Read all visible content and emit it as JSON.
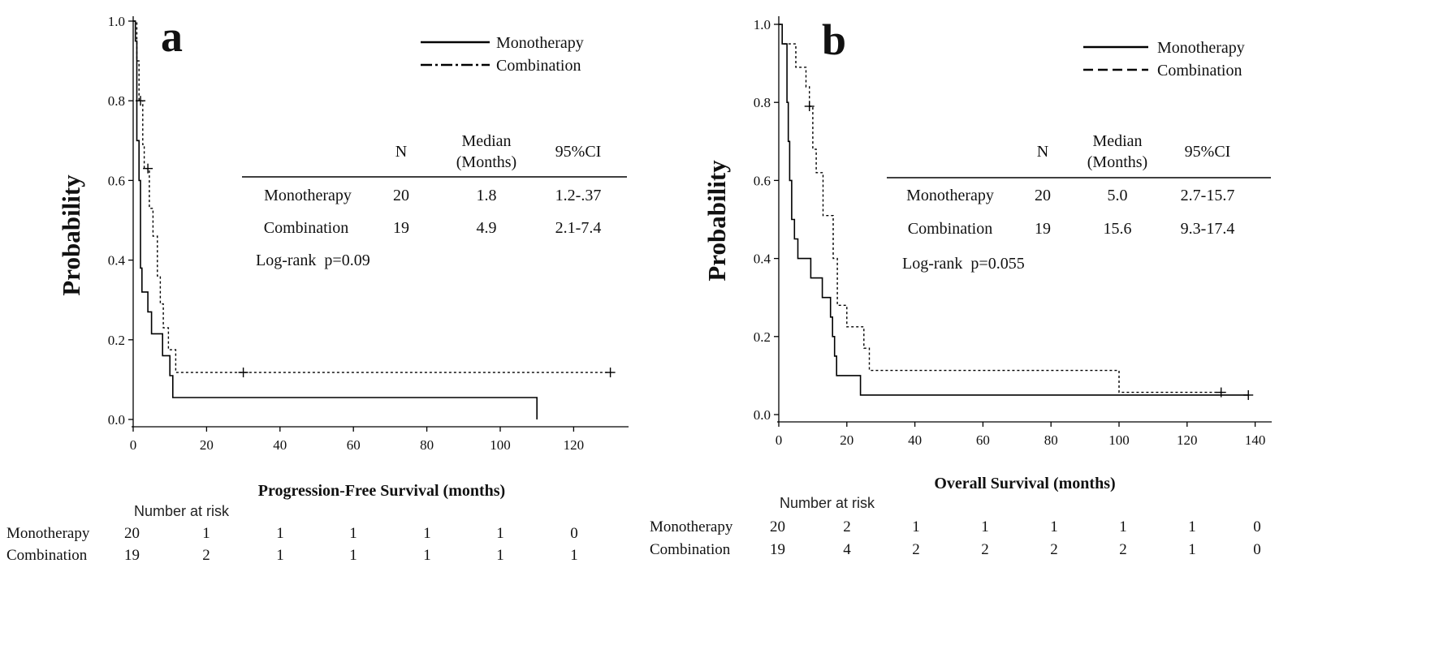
{
  "chart_data": [
    {
      "type": "line",
      "panel_letter": "a",
      "xlabel": "Progression-Free Survival (months)",
      "ylabel": "Probability",
      "xlim": [
        0,
        135
      ],
      "ylim": [
        0,
        1.0
      ],
      "x_ticks": [
        0,
        20,
        40,
        60,
        80,
        100,
        120
      ],
      "y_ticks": [
        "0.0",
        "0.2",
        "0.4",
        "0.6",
        "0.8",
        "1.0"
      ],
      "x_tick_labels": [
        "0",
        "20",
        "40",
        "60",
        "80",
        "100",
        "120"
      ],
      "legend": [
        {
          "name": "Monotherapy",
          "style": "solid"
        },
        {
          "name": "Combination",
          "style": "dashdot"
        }
      ],
      "series": [
        {
          "name": "Monotherapy",
          "style": "solid",
          "points": [
            [
              0,
              1.0
            ],
            [
              0.6,
              1.0
            ],
            [
              0.6,
              0.95
            ],
            [
              1.0,
              0.95
            ],
            [
              1.0,
              0.7
            ],
            [
              1.6,
              0.7
            ],
            [
              1.6,
              0.6
            ],
            [
              2.0,
              0.6
            ],
            [
              2.0,
              0.38
            ],
            [
              2.4,
              0.38
            ],
            [
              2.4,
              0.32
            ],
            [
              4,
              0.32
            ],
            [
              4,
              0.27
            ],
            [
              5,
              0.27
            ],
            [
              5,
              0.215
            ],
            [
              8,
              0.215
            ],
            [
              8,
              0.16
            ],
            [
              10,
              0.16
            ],
            [
              10,
              0.11
            ],
            [
              10.8,
              0.11
            ],
            [
              10.8,
              0.055
            ],
            [
              110,
              0.055
            ],
            [
              110,
              0.0
            ]
          ],
          "censors": []
        },
        {
          "name": "Combination",
          "style": "dashdot",
          "points": [
            [
              0,
              1.0
            ],
            [
              1,
              1.0
            ],
            [
              1,
              0.9
            ],
            [
              1.6,
              0.9
            ],
            [
              1.6,
              0.8
            ],
            [
              2.6,
              0.8
            ],
            [
              2.6,
              0.69
            ],
            [
              3,
              0.69
            ],
            [
              3,
              0.63
            ],
            [
              4.4,
              0.63
            ],
            [
              4.4,
              0.53
            ],
            [
              5.4,
              0.53
            ],
            [
              5.4,
              0.46
            ],
            [
              6.6,
              0.46
            ],
            [
              6.6,
              0.36
            ],
            [
              7.4,
              0.36
            ],
            [
              7.4,
              0.29
            ],
            [
              8.2,
              0.29
            ],
            [
              8.2,
              0.23
            ],
            [
              9.6,
              0.23
            ],
            [
              9.6,
              0.175
            ],
            [
              11.6,
              0.175
            ],
            [
              11.6,
              0.118
            ],
            [
              130,
              0.118
            ]
          ],
          "censors": [
            [
              2,
              0.8
            ],
            [
              4,
              0.63
            ],
            [
              30,
              0.118
            ],
            [
              130,
              0.118
            ]
          ]
        }
      ],
      "table": {
        "headers": [
          "N",
          "Median",
          "(Months)",
          "95%CI"
        ],
        "rows": [
          {
            "name": "Monotherapy",
            "n": "20",
            "median": "1.8",
            "ci": "1.2-.37"
          },
          {
            "name": "Combination",
            "n": "19",
            "median": "4.9",
            "ci": "2.1-7.4"
          }
        ],
        "logrank": "Log-rank  p=0.09"
      },
      "risk": {
        "title": "Number at risk",
        "rows": [
          {
            "name": "Monotherapy",
            "values": [
              "20",
              "1",
              "1",
              "1",
              "1",
              "1",
              "0"
            ]
          },
          {
            "name": "Combination",
            "values": [
              "19",
              "2",
              "1",
              "1",
              "1",
              "1",
              "1"
            ]
          }
        ]
      }
    },
    {
      "type": "line",
      "panel_letter": "b",
      "xlabel": "Overall Survival (months)",
      "ylabel": "Probability",
      "xlim": [
        0,
        142
      ],
      "ylim": [
        0,
        1.0
      ],
      "x_ticks": [
        0,
        20,
        40,
        60,
        80,
        100,
        120,
        140
      ],
      "y_ticks": [
        "0.0",
        "0.2",
        "0.4",
        "0.6",
        "0.8",
        "1.0"
      ],
      "x_tick_labels": [
        "0",
        "20",
        "40",
        "60",
        "80",
        "100",
        "120",
        "140"
      ],
      "legend": [
        {
          "name": "Monotherapy",
          "style": "solid"
        },
        {
          "name": "Combination",
          "style": "dashed"
        }
      ],
      "series": [
        {
          "name": "Monotherapy",
          "style": "solid",
          "points": [
            [
              0,
              1.0
            ],
            [
              1,
              1.0
            ],
            [
              1,
              0.95
            ],
            [
              2.4,
              0.95
            ],
            [
              2.4,
              0.8
            ],
            [
              2.8,
              0.8
            ],
            [
              2.8,
              0.7
            ],
            [
              3.2,
              0.7
            ],
            [
              3.2,
              0.6
            ],
            [
              3.8,
              0.6
            ],
            [
              3.8,
              0.5
            ],
            [
              4.6,
              0.5
            ],
            [
              4.6,
              0.45
            ],
            [
              5.6,
              0.45
            ],
            [
              5.6,
              0.4
            ],
            [
              9.4,
              0.4
            ],
            [
              9.4,
              0.35
            ],
            [
              12.8,
              0.35
            ],
            [
              12.8,
              0.3
            ],
            [
              15.2,
              0.3
            ],
            [
              15.2,
              0.25
            ],
            [
              15.8,
              0.25
            ],
            [
              15.8,
              0.2
            ],
            [
              16.4,
              0.2
            ],
            [
              16.4,
              0.15
            ],
            [
              17,
              0.15
            ],
            [
              17,
              0.1
            ],
            [
              24,
              0.1
            ],
            [
              24,
              0.05
            ],
            [
              138,
              0.05
            ]
          ],
          "censors": [
            [
              138,
              0.05
            ]
          ]
        },
        {
          "name": "Combination",
          "style": "dashed",
          "points": [
            [
              0,
              1.0
            ],
            [
              1,
              1.0
            ],
            [
              1,
              0.95
            ],
            [
              5,
              0.95
            ],
            [
              5,
              0.89
            ],
            [
              8,
              0.89
            ],
            [
              8,
              0.84
            ],
            [
              9,
              0.84
            ],
            [
              9,
              0.79
            ],
            [
              10,
              0.79
            ],
            [
              10,
              0.68
            ],
            [
              11,
              0.68
            ],
            [
              11,
              0.62
            ],
            [
              13,
              0.62
            ],
            [
              13,
              0.51
            ],
            [
              16,
              0.51
            ],
            [
              16,
              0.4
            ],
            [
              17.2,
              0.4
            ],
            [
              17.2,
              0.28
            ],
            [
              20,
              0.28
            ],
            [
              20,
              0.225
            ],
            [
              25,
              0.225
            ],
            [
              25,
              0.17
            ],
            [
              26.6,
              0.17
            ],
            [
              26.6,
              0.113
            ],
            [
              100,
              0.113
            ],
            [
              100,
              0.057
            ],
            [
              130,
              0.057
            ]
          ],
          "censors": [
            [
              9,
              0.79
            ],
            [
              130,
              0.057
            ]
          ]
        }
      ],
      "table": {
        "headers": [
          "N",
          "Median",
          "(Months)",
          "95%CI"
        ],
        "rows": [
          {
            "name": "Monotherapy",
            "n": "20",
            "median": "5.0",
            "ci": "2.7-15.7"
          },
          {
            "name": "Combination",
            "n": "19",
            "median": "15.6",
            "ci": "9.3-17.4"
          }
        ],
        "logrank": "Log-rank  p=0.055"
      },
      "risk": {
        "title": "Number at risk",
        "rows": [
          {
            "name": "Monotherapy",
            "values": [
              "20",
              "2",
              "1",
              "1",
              "1",
              "1",
              "1",
              "0"
            ]
          },
          {
            "name": "Combination",
            "values": [
              "19",
              "4",
              "2",
              "2",
              "2",
              "2",
              "1",
              "0"
            ]
          }
        ]
      }
    }
  ]
}
